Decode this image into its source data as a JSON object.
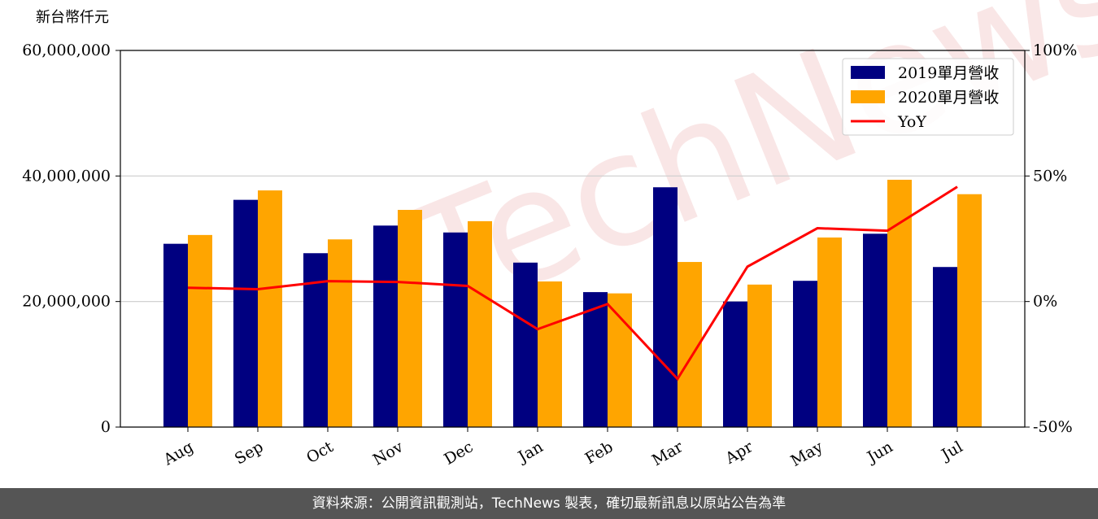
{
  "chart_data": {
    "type": "bar",
    "ylabel": "新台幣仟元",
    "watermark": "TechNews",
    "categories": [
      "Aug",
      "Sep",
      "Oct",
      "Nov",
      "Dec",
      "Jan",
      "Feb",
      "Mar",
      "Apr",
      "May",
      "Jun",
      "Jul"
    ],
    "series": [
      {
        "name": "2019單月營收",
        "color": "#000080",
        "values": [
          29200000,
          36200000,
          27700000,
          32100000,
          31000000,
          26200000,
          21500000,
          38200000,
          20000000,
          23300000,
          30800000,
          25500000
        ]
      },
      {
        "name": "2020單月營收",
        "color": "#ffa500",
        "values": [
          30600000,
          37700000,
          29900000,
          34600000,
          32800000,
          23200000,
          21300000,
          26300000,
          22700000,
          30200000,
          39400000,
          37100000
        ]
      },
      {
        "name": "YoY",
        "color": "#ff0000",
        "type": "line",
        "axis": "y2",
        "values": [
          5.5,
          4.9,
          8.1,
          7.8,
          6.2,
          -11.0,
          -1.0,
          -30.8,
          13.9,
          29.2,
          28.2,
          45.7
        ]
      }
    ],
    "ylim": [
      0,
      60000000
    ],
    "yticks": [
      0,
      {
        "value": 20000000,
        "label": "20,000,000"
      },
      {
        "value": 40000000,
        "label": "40,000,000"
      },
      {
        "value": 60000000,
        "label": "60,000,000"
      }
    ],
    "y2lim": [
      -50,
      100
    ],
    "y2ticks": [
      {
        "value": -50,
        "label": "-50%"
      },
      {
        "value": 0,
        "label": "0%"
      },
      {
        "value": 50,
        "label": "50%"
      },
      {
        "value": 100,
        "label": "100%"
      }
    ],
    "grid": true,
    "legend": "upper right",
    "source": "資料來源：公開資訊觀測站，TechNews 製表，確切最新訊息以原站公告為準"
  }
}
